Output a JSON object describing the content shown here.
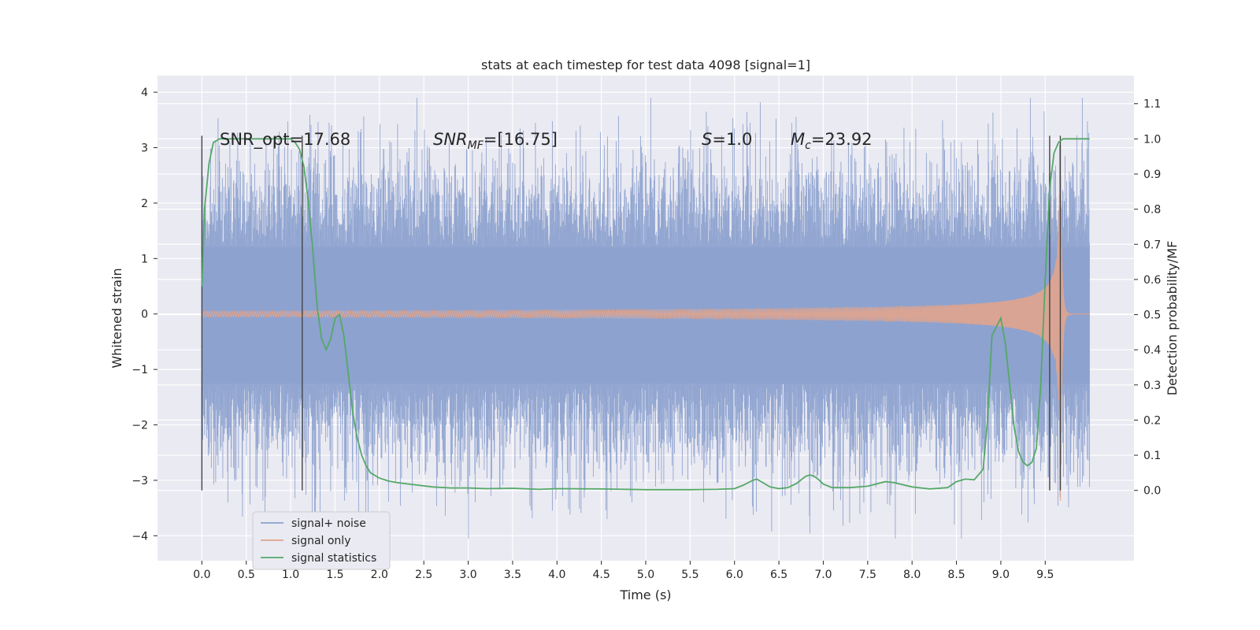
{
  "chart_data": {
    "type": "line",
    "title": "stats at each timestep for test data 4098 [signal=1]",
    "xlabel": "Time (s)",
    "ylabel_left": "Whitened strain",
    "ylabel_right": "Detection probability/MF",
    "xlim": [
      -0.5,
      10.5
    ],
    "ylim_left": [
      -4.45,
      4.3
    ],
    "ylim_right": [
      -0.2,
      1.18
    ],
    "x_ticks": [
      0.0,
      0.5,
      1.0,
      1.5,
      2.0,
      2.5,
      3.0,
      3.5,
      4.0,
      4.5,
      5.0,
      5.5,
      6.0,
      6.5,
      7.0,
      7.5,
      8.0,
      8.5,
      9.0,
      9.5
    ],
    "x_tick_labels": [
      "0.0",
      "0.5",
      "1.0",
      "1.5",
      "2.0",
      "2.5",
      "3.0",
      "3.5",
      "4.0",
      "4.5",
      "5.0",
      "5.5",
      "6.0",
      "6.5",
      "7.0",
      "7.5",
      "8.0",
      "8.5",
      "9.0",
      "9.5"
    ],
    "y_left_ticks": [
      -4,
      -3,
      -2,
      -1,
      0,
      1,
      2,
      3,
      4
    ],
    "y_left_tick_labels": [
      "−4",
      "−3",
      "−2",
      "−1",
      "0",
      "1",
      "2",
      "3",
      "4"
    ],
    "y_right_ticks": [
      0.0,
      0.1,
      0.2,
      0.3,
      0.4,
      0.5,
      0.6,
      0.7,
      0.8,
      0.9,
      1.0,
      1.1
    ],
    "y_right_tick_labels": [
      "0.0",
      "0.1",
      "0.2",
      "0.3",
      "0.4",
      "0.5",
      "0.6",
      "0.7",
      "0.8",
      "0.9",
      "1.0",
      "1.1"
    ],
    "grid": true,
    "legend_position": "lower-left",
    "colors": {
      "signal_noise": "#8da2cf",
      "signal_only": "#e1a48c",
      "signal_statistics": "#55a868",
      "vlines": "#444444",
      "axes_bg": "#eaeaf2",
      "grid": "#ffffff"
    },
    "series": [
      {
        "name": "signal+ noise",
        "x_range": [
          0.0,
          10.0
        ],
        "amplitude_range": [
          -4.05,
          3.9
        ],
        "typical_envelope": [
          -1.25,
          1.2
        ]
      },
      {
        "name": "signal only",
        "chirp": true,
        "x_range": [
          0.0,
          10.0
        ],
        "peak_time": 9.67,
        "peak_amplitude": 3.8
      },
      {
        "name": "signal statistics",
        "axis": "right",
        "x": [
          0.0,
          0.03,
          0.08,
          0.13,
          0.2,
          0.35,
          0.5,
          0.7,
          0.9,
          1.0,
          1.05,
          1.1,
          1.15,
          1.2,
          1.25,
          1.3,
          1.35,
          1.4,
          1.45,
          1.5,
          1.55,
          1.6,
          1.65,
          1.7,
          1.75,
          1.8,
          1.85,
          1.9,
          2.0,
          2.1,
          2.2,
          2.4,
          2.6,
          2.8,
          3.0,
          3.2,
          3.5,
          3.8,
          4.0,
          4.5,
          5.0,
          5.5,
          5.8,
          6.0,
          6.1,
          6.2,
          6.25,
          6.3,
          6.4,
          6.5,
          6.6,
          6.7,
          6.8,
          6.85,
          6.9,
          6.95,
          7.0,
          7.1,
          7.3,
          7.5,
          7.7,
          7.8,
          8.0,
          8.2,
          8.4,
          8.5,
          8.6,
          8.7,
          8.8,
          8.85,
          8.9,
          9.0,
          9.05,
          9.1,
          9.15,
          9.2,
          9.25,
          9.3,
          9.35,
          9.4,
          9.45,
          9.5,
          9.55,
          9.6,
          9.65,
          9.7,
          9.75,
          9.8,
          9.9,
          10.0
        ],
        "y": [
          0.58,
          0.8,
          0.93,
          0.99,
          1.0,
          1.0,
          1.0,
          1.0,
          1.0,
          1.0,
          0.99,
          0.97,
          0.92,
          0.82,
          0.68,
          0.52,
          0.43,
          0.4,
          0.43,
          0.49,
          0.5,
          0.44,
          0.33,
          0.22,
          0.15,
          0.1,
          0.07,
          0.05,
          0.035,
          0.027,
          0.022,
          0.016,
          0.01,
          0.007,
          0.007,
          0.005,
          0.006,
          0.003,
          0.005,
          0.004,
          0.002,
          0.002,
          0.003,
          0.005,
          0.015,
          0.028,
          0.032,
          0.025,
          0.01,
          0.005,
          0.008,
          0.02,
          0.04,
          0.044,
          0.04,
          0.03,
          0.018,
          0.008,
          0.008,
          0.012,
          0.025,
          0.022,
          0.01,
          0.004,
          0.008,
          0.025,
          0.032,
          0.03,
          0.06,
          0.2,
          0.44,
          0.49,
          0.42,
          0.3,
          0.18,
          0.11,
          0.08,
          0.07,
          0.08,
          0.12,
          0.3,
          0.6,
          0.86,
          0.96,
          0.99,
          1.0,
          1.0,
          1.0,
          1.0,
          1.0
        ]
      }
    ],
    "vertical_lines_x": [
      0.0,
      1.13,
      9.55,
      9.67
    ],
    "annotations": {
      "snr_opt": "SNR_opt=17.68",
      "snr_mf_sym": "SNR",
      "snr_mf_sub": "MF",
      "snr_mf_val": "=[16.75]",
      "s_sym": "S",
      "s_val": "=1.0",
      "mc_sym": "M",
      "mc_sub": "c",
      "mc_val": "=23.92"
    }
  },
  "legend": {
    "items": [
      {
        "label": "signal+ noise"
      },
      {
        "label": "signal only"
      },
      {
        "label": "signal statistics"
      }
    ]
  }
}
